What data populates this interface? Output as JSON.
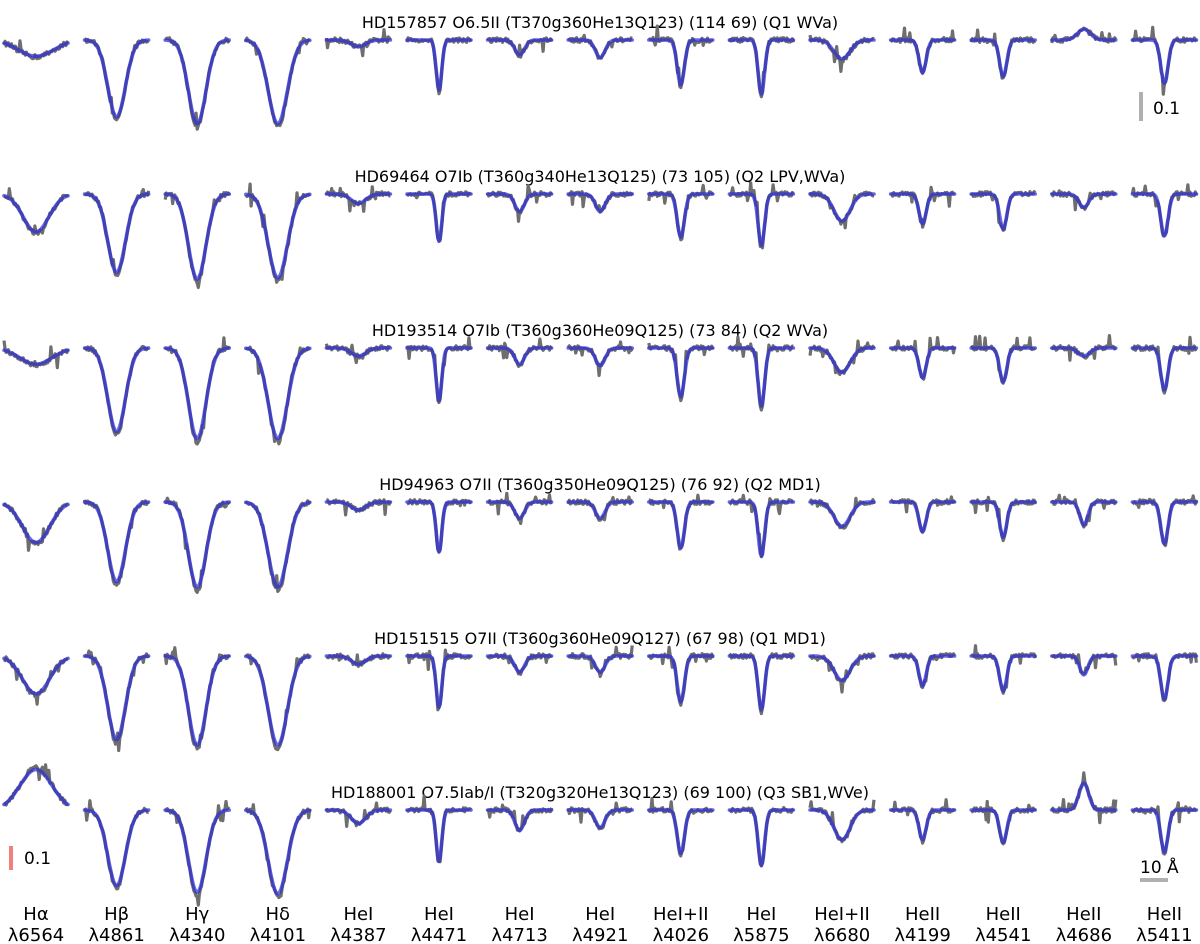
{
  "chart_data": {
    "type": "line",
    "colors": {
      "observed": "#6e6e6e",
      "model": "#3a3ad8",
      "flux_scale_top": "#b0b0b0",
      "flux_scale_bottom": "#f08080",
      "wave_scale": "#b0b0b0"
    },
    "columns": [
      {
        "element": "Hα",
        "wavelength": "λ6564"
      },
      {
        "element": "Hβ",
        "wavelength": "λ4861"
      },
      {
        "element": "Hγ",
        "wavelength": "λ4340"
      },
      {
        "element": "Hδ",
        "wavelength": "λ4101"
      },
      {
        "element": "HeI",
        "wavelength": "λ4387"
      },
      {
        "element": "HeI",
        "wavelength": "λ4471"
      },
      {
        "element": "HeI",
        "wavelength": "λ4713"
      },
      {
        "element": "HeI",
        "wavelength": "λ4921"
      },
      {
        "element": "HeI+II",
        "wavelength": "λ4026"
      },
      {
        "element": "HeI",
        "wavelength": "λ5875"
      },
      {
        "element": "HeI+II",
        "wavelength": "λ6680"
      },
      {
        "element": "HeII",
        "wavelength": "λ4199"
      },
      {
        "element": "HeII",
        "wavelength": "λ4541"
      },
      {
        "element": "HeII",
        "wavelength": "λ4686"
      },
      {
        "element": "HeII",
        "wavelength": "λ5411"
      }
    ],
    "stars": [
      {
        "title": "HD157857 O6.5II (T370g360He13Q123) (114 69) (Q1 WVa)",
        "depths": [
          0.12,
          0.57,
          0.62,
          0.62,
          0.05,
          0.37,
          0.11,
          0.13,
          0.33,
          0.4,
          0.14,
          0.24,
          0.27,
          -0.08,
          0.32
        ],
        "widths": [
          2.2,
          1.1,
          1.1,
          1.2,
          0.9,
          0.35,
          0.6,
          0.6,
          0.45,
          0.4,
          1.0,
          0.45,
          0.45,
          0.8,
          0.45
        ]
      },
      {
        "title": "HD69464 O7Ib (T360g340He13Q125) (73 105) (Q2 LPV,WVa)",
        "depths": [
          0.28,
          0.58,
          0.63,
          0.62,
          0.07,
          0.35,
          0.13,
          0.13,
          0.32,
          0.38,
          0.2,
          0.22,
          0.26,
          0.1,
          0.31
        ],
        "widths": [
          1.6,
          1.1,
          1.1,
          1.2,
          0.9,
          0.35,
          0.6,
          0.6,
          0.45,
          0.4,
          1.0,
          0.45,
          0.45,
          0.6,
          0.45
        ]
      },
      {
        "title": "HD193514 O7Ib (T360g360He09Q125) (73 84) (Q2 WVa)",
        "depths": [
          0.12,
          0.62,
          0.67,
          0.67,
          0.06,
          0.39,
          0.12,
          0.13,
          0.36,
          0.43,
          0.18,
          0.22,
          0.25,
          0.06,
          0.31
        ],
        "widths": [
          2.0,
          1.1,
          1.1,
          1.2,
          0.9,
          0.35,
          0.6,
          0.6,
          0.45,
          0.4,
          1.0,
          0.45,
          0.45,
          0.7,
          0.45
        ]
      },
      {
        "title": "HD94963 O7II (T360g350He09Q125) (76 92) (Q2 MD1)",
        "depths": [
          0.3,
          0.59,
          0.63,
          0.63,
          0.06,
          0.37,
          0.12,
          0.12,
          0.34,
          0.4,
          0.18,
          0.22,
          0.26,
          0.17,
          0.31
        ],
        "widths": [
          1.7,
          1.1,
          1.1,
          1.2,
          0.9,
          0.35,
          0.6,
          0.6,
          0.45,
          0.4,
          1.0,
          0.45,
          0.45,
          0.5,
          0.45
        ]
      },
      {
        "title": "HD151515 O7II (T360g360He09Q127) (67 98) (Q1 MD1)",
        "depths": [
          0.28,
          0.62,
          0.66,
          0.66,
          0.06,
          0.38,
          0.12,
          0.12,
          0.34,
          0.4,
          0.18,
          0.22,
          0.26,
          0.14,
          0.32
        ],
        "widths": [
          1.7,
          1.1,
          1.1,
          1.2,
          0.9,
          0.35,
          0.6,
          0.6,
          0.45,
          0.4,
          1.0,
          0.45,
          0.45,
          0.5,
          0.45
        ]
      },
      {
        "title": "HD188001 O7.5Iab/I (T320g320He13Q123) (69 100) (Q3 SB1,WVe)",
        "depths": [
          -0.3,
          0.56,
          0.61,
          0.62,
          0.1,
          0.38,
          0.15,
          0.13,
          0.32,
          0.41,
          0.22,
          0.22,
          0.24,
          -0.2,
          0.31
        ],
        "widths": [
          2.0,
          1.1,
          1.1,
          1.2,
          0.9,
          0.35,
          0.6,
          0.6,
          0.45,
          0.4,
          1.0,
          0.45,
          0.45,
          0.6,
          0.45
        ]
      }
    ],
    "flux_scale_label": "0.1",
    "wavelength_scale_label": "10 Å"
  }
}
